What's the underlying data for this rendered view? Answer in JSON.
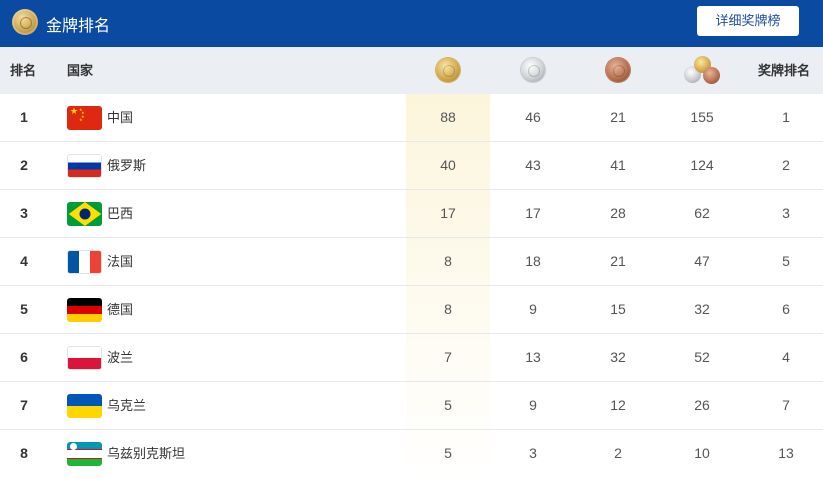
{
  "header": {
    "title": "金牌排名",
    "detail_button": "详细奖牌榜",
    "bg_color": "#0a4aa0"
  },
  "table": {
    "columns": {
      "rank": "排名",
      "country": "国家",
      "gold_icon": "gold-medal-icon",
      "silver_icon": "silver-medal-icon",
      "bronze_icon": "bronze-medal-icon",
      "total_icon": "total-medals-icon",
      "medal_rank": "奖牌排名"
    },
    "rows": [
      {
        "rank": "1",
        "country": "中国",
        "flag": "china-flag-icon",
        "gold": "88",
        "silver": "46",
        "bronze": "21",
        "total": "155",
        "medal_rank": "1"
      },
      {
        "rank": "2",
        "country": "俄罗斯",
        "flag": "russia-flag-icon",
        "gold": "40",
        "silver": "43",
        "bronze": "41",
        "total": "124",
        "medal_rank": "2"
      },
      {
        "rank": "3",
        "country": "巴西",
        "flag": "brazil-flag-icon",
        "gold": "17",
        "silver": "17",
        "bronze": "28",
        "total": "62",
        "medal_rank": "3"
      },
      {
        "rank": "4",
        "country": "法国",
        "flag": "france-flag-icon",
        "gold": "8",
        "silver": "18",
        "bronze": "21",
        "total": "47",
        "medal_rank": "5"
      },
      {
        "rank": "5",
        "country": "德国",
        "flag": "germany-flag-icon",
        "gold": "8",
        "silver": "9",
        "bronze": "15",
        "total": "32",
        "medal_rank": "6"
      },
      {
        "rank": "6",
        "country": "波兰",
        "flag": "poland-flag-icon",
        "gold": "7",
        "silver": "13",
        "bronze": "32",
        "total": "52",
        "medal_rank": "4"
      },
      {
        "rank": "7",
        "country": "乌克兰",
        "flag": "ukraine-flag-icon",
        "gold": "5",
        "silver": "9",
        "bronze": "12",
        "total": "26",
        "medal_rank": "7"
      },
      {
        "rank": "8",
        "country": "乌兹别克斯坦",
        "flag": "uzbekistan-flag-icon",
        "gold": "5",
        "silver": "3",
        "bronze": "2",
        "total": "10",
        "medal_rank": "13"
      }
    ]
  }
}
